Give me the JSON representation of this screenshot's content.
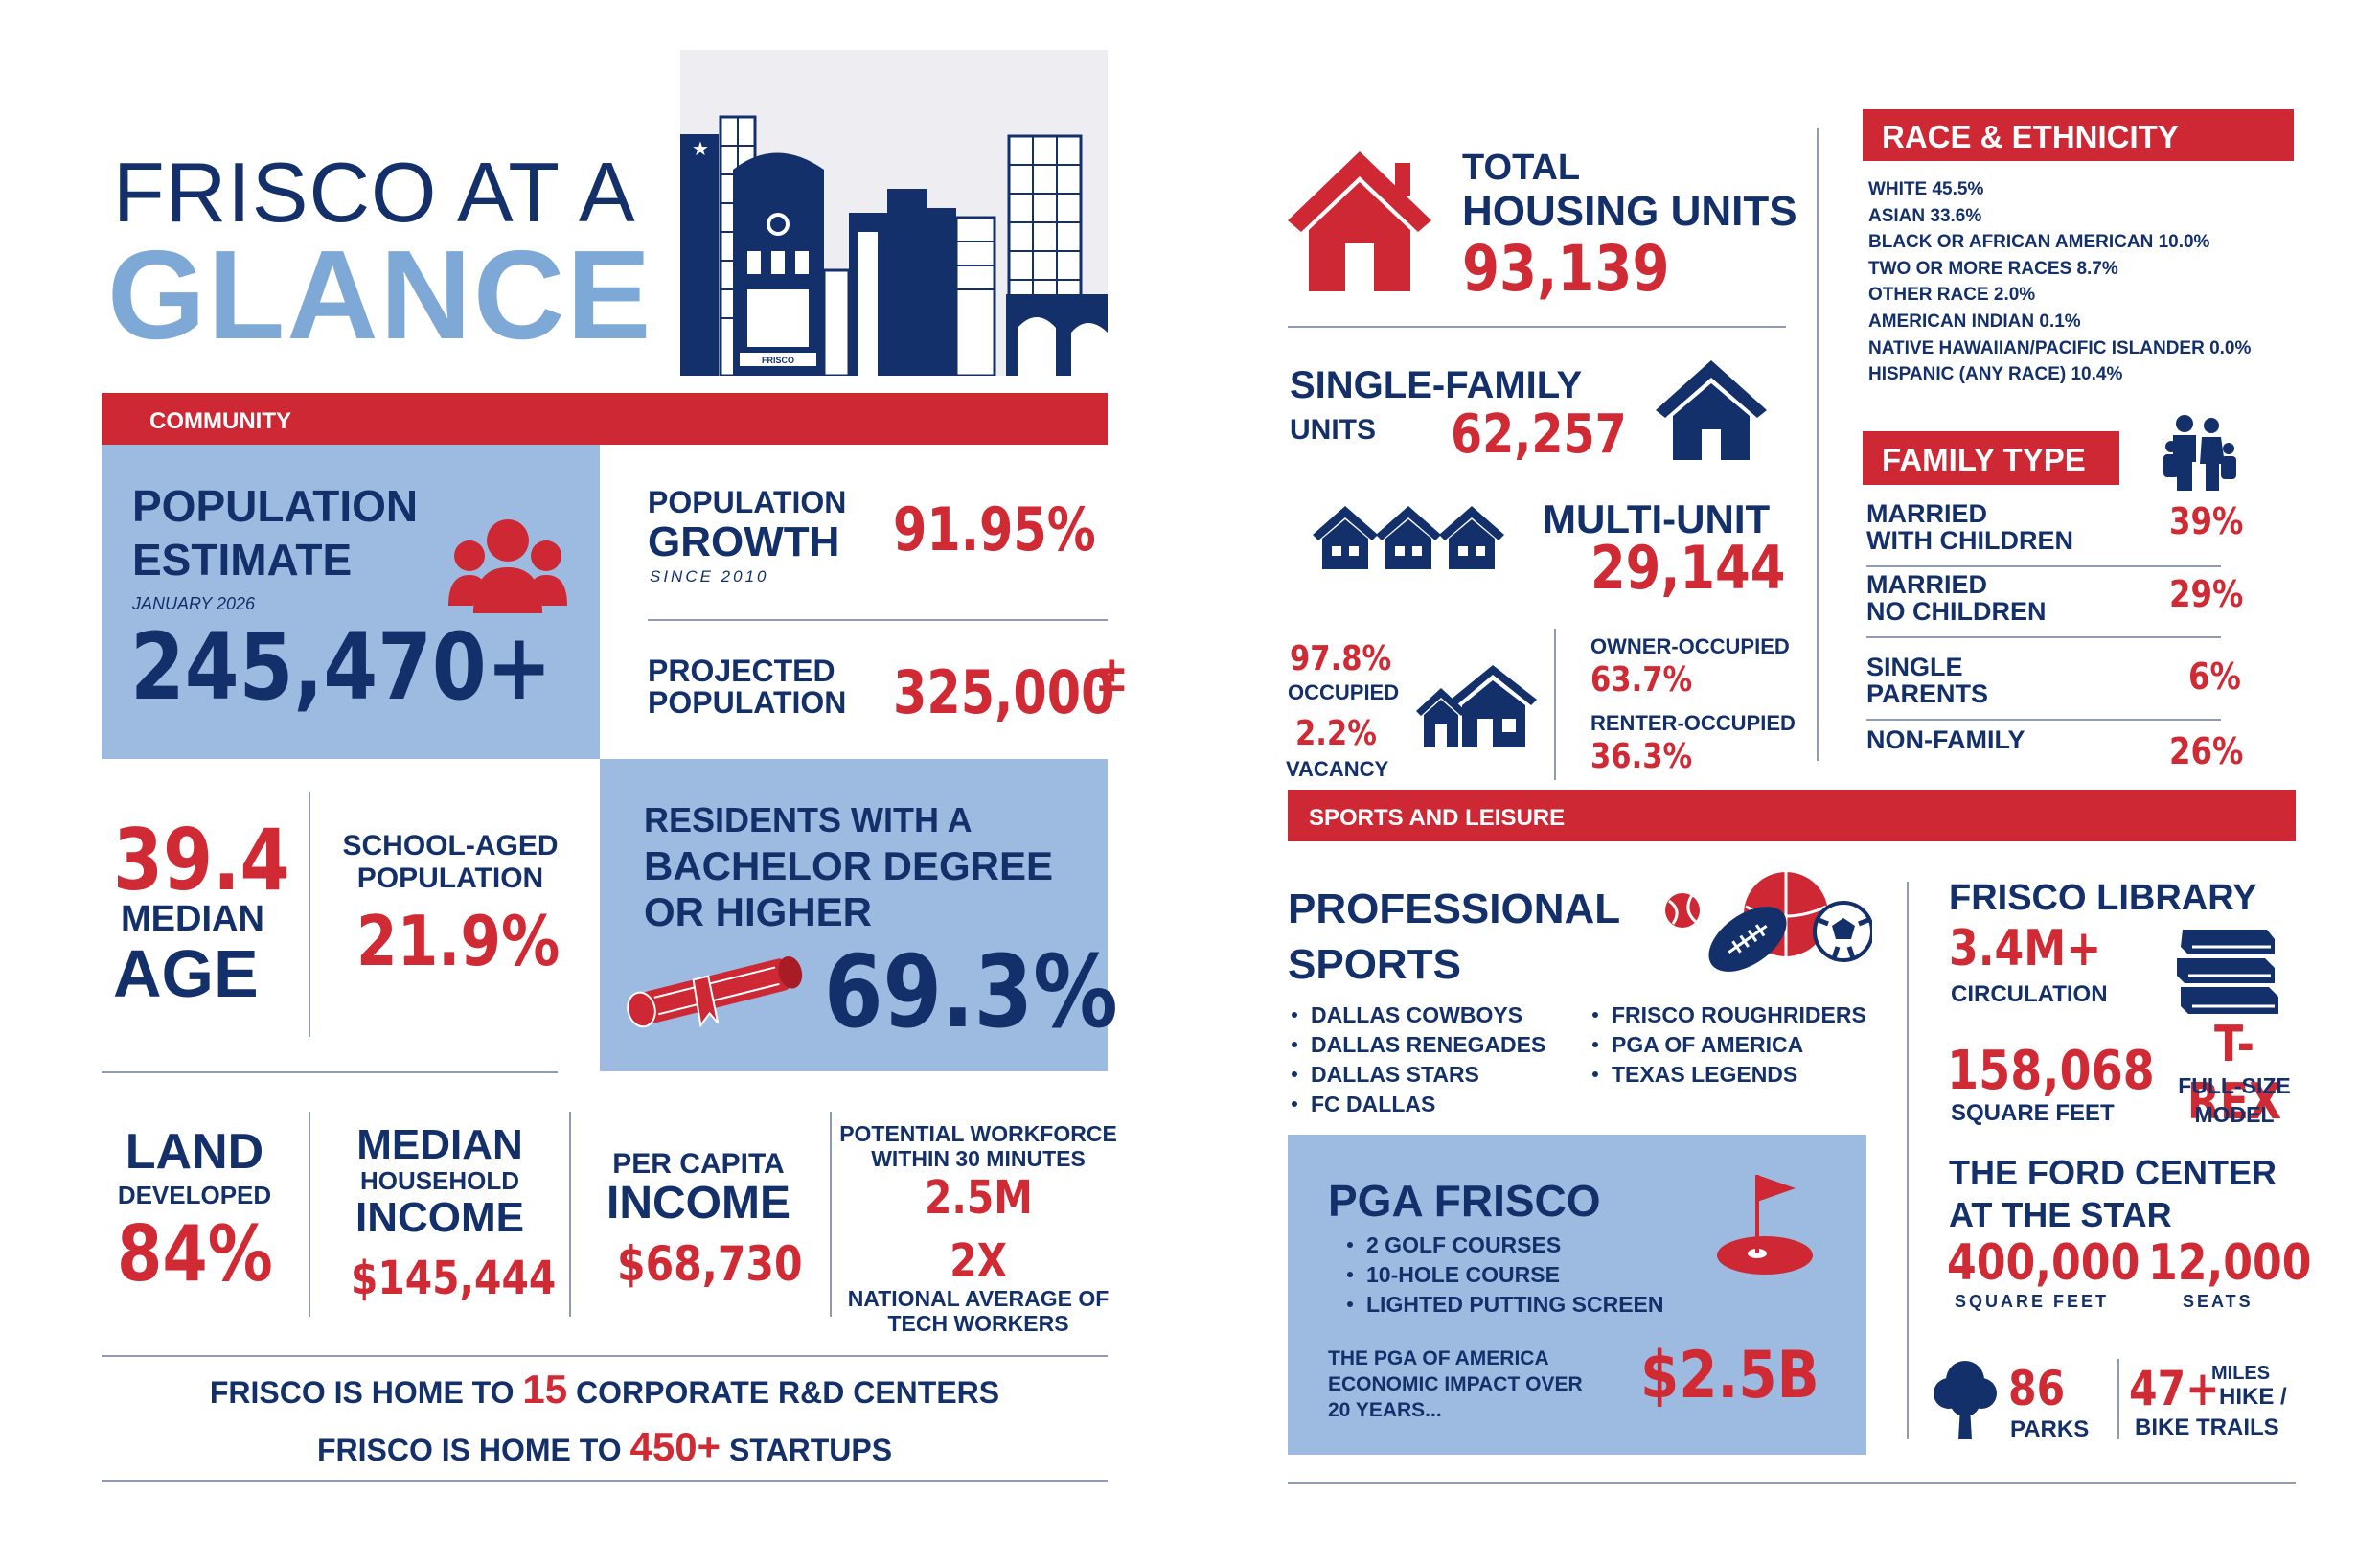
{
  "title": {
    "line1": "FRISCO AT A",
    "line2": "GLANCE"
  },
  "skyline": {
    "sign": "FRISCO"
  },
  "community": {
    "header": "COMMUNITY",
    "population": {
      "label1": "POPULATION",
      "label2": "ESTIMATE",
      "date": "JANUARY 2026",
      "value": "245,470+"
    },
    "growth": {
      "label1": "POPULATION",
      "label2": "GROWTH",
      "since": "SINCE 2010",
      "value": "91.95%"
    },
    "projected": {
      "label1": "PROJECTED",
      "label2": "POPULATION",
      "value": "325,000",
      "suffix": "±"
    },
    "median_age": {
      "value": "39.4",
      "label1": "MEDIAN",
      "label2": "AGE"
    },
    "school_aged": {
      "label1": "SCHOOL-AGED",
      "label2": "POPULATION",
      "value": "21.9%"
    },
    "bachelor": {
      "label1": "RESIDENTS WITH A",
      "label2": "BACHELOR DEGREE",
      "label3": "OR HIGHER",
      "value": "69.3%"
    },
    "land": {
      "label1": "LAND",
      "label2": "DEVELOPED",
      "value": "84%"
    },
    "median_income": {
      "label1": "MEDIAN",
      "label2": "HOUSEHOLD",
      "label3": "INCOME",
      "value": "$145,444"
    },
    "per_capita": {
      "label1": "PER CAPITA",
      "label2": "INCOME",
      "value": "$68,730"
    },
    "workforce": {
      "label1": "POTENTIAL WORKFORCE",
      "label2": "WITHIN 30 MINUTES",
      "value1": "2.5M",
      "value2": "2X",
      "label3": "NATIONAL AVERAGE OF",
      "label4": "TECH WORKERS"
    },
    "rd": {
      "prefix": "FRISCO IS HOME TO",
      "value": "15",
      "suffix": "CORPORATE R&D CENTERS"
    },
    "startups": {
      "prefix": "FRISCO IS HOME TO",
      "value": "450+",
      "suffix": "STARTUPS"
    }
  },
  "housing": {
    "total": {
      "label1": "TOTAL",
      "label2": "HOUSING UNITS",
      "value": "93,139"
    },
    "single_family": {
      "label1": "SINGLE-FAMILY",
      "label2": "UNITS",
      "value": "62,257"
    },
    "multi_unit": {
      "label": "MULTI-UNIT",
      "value": "29,144"
    },
    "occupied": {
      "value": "97.8%",
      "label": "OCCUPIED"
    },
    "vacancy": {
      "value": "2.2%",
      "label": "VACANCY"
    },
    "owner": {
      "label": "OWNER-OCCUPIED",
      "value": "63.7%"
    },
    "renter": {
      "label": "RENTER-OCCUPIED",
      "value": "36.3%"
    }
  },
  "race": {
    "header": "RACE & ETHNICITY",
    "items": [
      "WHITE 45.5%",
      "ASIAN 33.6%",
      "BLACK OR AFRICAN AMERICAN 10.0%",
      "TWO OR MORE RACES 8.7%",
      "OTHER RACE 2.0%",
      "AMERICAN INDIAN 0.1%",
      "NATIVE HAWAIIAN/PACIFIC ISLANDER 0.0%",
      "HISPANIC (ANY RACE) 10.4%"
    ]
  },
  "family": {
    "header": "FAMILY TYPE",
    "rows": [
      {
        "label1": "MARRIED",
        "label2": "WITH CHILDREN",
        "value": "39%"
      },
      {
        "label1": "MARRIED",
        "label2": "NO CHILDREN",
        "value": "29%"
      },
      {
        "label1": "SINGLE",
        "label2": "PARENTS",
        "value": "6%"
      },
      {
        "label1": "NON-FAMILY",
        "label2": "",
        "value": "26%"
      }
    ]
  },
  "sports": {
    "header": "SPORTS AND LEISURE",
    "pro": {
      "label1": "PROFESSIONAL",
      "label2": "SPORTS",
      "col1": [
        "DALLAS COWBOYS",
        "DALLAS RENEGADES",
        "DALLAS STARS",
        "FC DALLAS"
      ],
      "col2": [
        "FRISCO ROUGHRIDERS",
        "PGA OF AMERICA",
        "TEXAS LEGENDS"
      ]
    },
    "pga": {
      "title": "PGA FRISCO",
      "items": [
        "2 GOLF COURSES",
        "10-HOLE COURSE",
        "LIGHTED PUTTING SCREEN"
      ],
      "impact1": "THE PGA OF AMERICA",
      "impact2": "ECONOMIC IMPACT OVER",
      "impact3": "20 YEARS...",
      "value": "$2.5B"
    },
    "library": {
      "title": "FRISCO LIBRARY",
      "circ_value": "3.4M+",
      "circ_label": "CIRCULATION",
      "sqft_value": "158,068",
      "sqft_label": "SQUARE FEET",
      "trex": "T-REX",
      "trex_l1": "FULL-SIZE",
      "trex_l2": "MODEL"
    },
    "ford": {
      "title1": "THE FORD CENTER",
      "title2": "AT THE STAR",
      "sqft_value": "400,000",
      "sqft_label": "SQUARE FEET",
      "seats_value": "12,000",
      "seats_label": "SEATS"
    },
    "parks": {
      "value": "86",
      "label": "PARKS"
    },
    "trails": {
      "value": "47+",
      "label1": "MILES",
      "label2": "HIKE /",
      "label3": "BIKE TRAILS"
    }
  },
  "colors": {
    "navy": "#13306b",
    "red": "#cd2833",
    "light_blue": "#9dbbe1",
    "title_blue": "#7ea8d6"
  }
}
